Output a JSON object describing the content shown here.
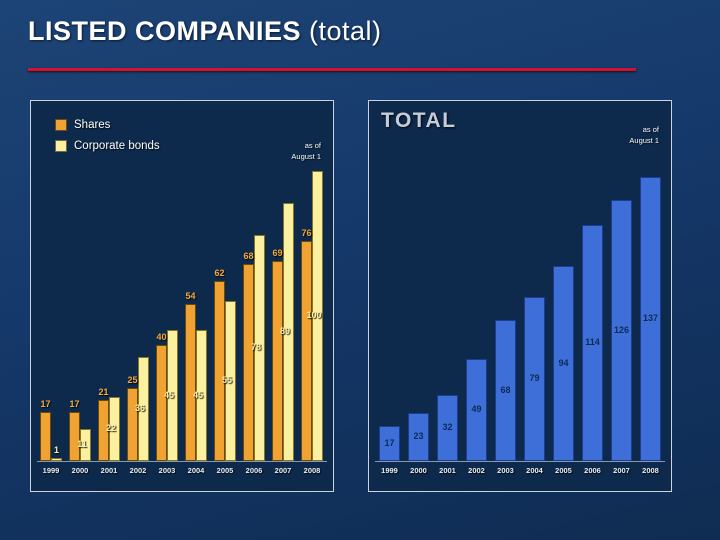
{
  "slide": {
    "title_main": "LISTED COMPANIES",
    "title_suffix": " (total)"
  },
  "left_chart": {
    "as_of_line1": "as of",
    "as_of_line2": "August 1",
    "legend": [
      {
        "label": "Shares",
        "color": "#F0A232"
      },
      {
        "label": "Corporate bonds",
        "color": "#FBF0A0"
      }
    ]
  },
  "right_chart": {
    "title": "TOTAL",
    "as_of_line1": "as of",
    "as_of_line2": "August 1",
    "bar_color": "#3E6FD9",
    "bar_border": "#1c3d8f",
    "label_color": "#0C2B55"
  },
  "chart_data": [
    {
      "type": "bar",
      "panel": "left",
      "categories": [
        "1999",
        "2000",
        "2001",
        "2002",
        "2003",
        "2004",
        "2005",
        "2006",
        "2007",
        "2008"
      ],
      "series": [
        {
          "name": "Shares",
          "color": "#F0A232",
          "values": [
            17,
            17,
            21,
            25,
            40,
            54,
            62,
            68,
            69,
            76
          ]
        },
        {
          "name": "Corporate bonds",
          "color": "#FBF0A0",
          "values": [
            1,
            11,
            22,
            36,
            45,
            45,
            55,
            78,
            89,
            100
          ]
        }
      ],
      "ylim": [
        0,
        100
      ],
      "note": "as of August 1",
      "legend_position": "top-left",
      "grid": false
    },
    {
      "type": "bar",
      "panel": "right",
      "title": "TOTAL",
      "categories": [
        "1999",
        "2000",
        "2001",
        "2002",
        "2003",
        "2004",
        "2005",
        "2006",
        "2007",
        "2008"
      ],
      "values": [
        17,
        23,
        32,
        49,
        68,
        79,
        94,
        114,
        126,
        137
      ],
      "ylim": [
        0,
        140
      ],
      "note": "as of August 1",
      "grid": false
    }
  ]
}
